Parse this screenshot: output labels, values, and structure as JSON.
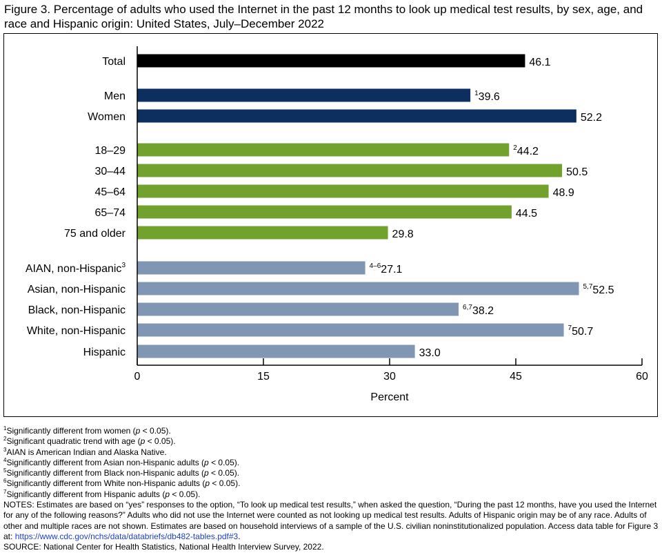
{
  "title": "Figure 3. Percentage of adults who used the Internet in the past 12 months to look up medical test results, by sex, age, and race and Hispanic origin: United States, July–December 2022",
  "chart_data": {
    "type": "bar",
    "orientation": "horizontal",
    "xlabel": "Percent",
    "xlim": [
      0,
      60
    ],
    "xticks": [
      "0",
      "15",
      "30",
      "45",
      "60"
    ],
    "grid": false,
    "groups": [
      {
        "color": "#000000",
        "bars": [
          {
            "label": "Total",
            "value": 46.1,
            "value_label": "46.1",
            "sup": "",
            "label_sup": ""
          }
        ]
      },
      {
        "color": "#0c2f60",
        "bars": [
          {
            "label": "Men",
            "value": 39.6,
            "value_label": "39.6",
            "sup": "1",
            "label_sup": ""
          },
          {
            "label": "Women",
            "value": 52.2,
            "value_label": "52.2",
            "sup": "",
            "label_sup": ""
          }
        ]
      },
      {
        "color": "#73a12d",
        "bars": [
          {
            "label": "18–29",
            "value": 44.2,
            "value_label": "44.2",
            "sup": "2",
            "label_sup": ""
          },
          {
            "label": "30–44",
            "value": 50.5,
            "value_label": "50.5",
            "sup": "",
            "label_sup": ""
          },
          {
            "label": "45–64",
            "value": 48.9,
            "value_label": "48.9",
            "sup": "",
            "label_sup": ""
          },
          {
            "label": "65–74",
            "value": 44.5,
            "value_label": "44.5",
            "sup": "",
            "label_sup": ""
          },
          {
            "label": "75 and older",
            "value": 29.8,
            "value_label": "29.8",
            "sup": "",
            "label_sup": ""
          }
        ]
      },
      {
        "color": "#8096b3",
        "bars": [
          {
            "label": "AIAN, non-Hispanic",
            "value": 27.1,
            "value_label": "27.1",
            "sup": "4–6",
            "label_sup": "3"
          },
          {
            "label": "Asian, non-Hispanic",
            "value": 52.5,
            "value_label": "52.5",
            "sup": "5,7",
            "label_sup": ""
          },
          {
            "label": "Black, non-Hispanic",
            "value": 38.2,
            "value_label": "38.2",
            "sup": "6,7",
            "label_sup": ""
          },
          {
            "label": "White, non-Hispanic",
            "value": 50.7,
            "value_label": "50.7",
            "sup": "7",
            "label_sup": ""
          },
          {
            "label": "Hispanic",
            "value": 33.0,
            "value_label": "33.0",
            "sup": "",
            "label_sup": ""
          }
        ]
      }
    ]
  },
  "footnotes": [
    {
      "sup": "1",
      "text": "Significantly different from women (",
      "p": "p",
      "tail": " < 0.05)."
    },
    {
      "sup": "2",
      "text": "Significant quadratic trend with age (",
      "p": "p",
      "tail": " < 0.05)."
    },
    {
      "sup": "3",
      "text": "AIAN is American Indian and Alaska Native.",
      "p": "",
      "tail": ""
    },
    {
      "sup": "4",
      "text": "Significantly different from Asian non-Hispanic adults (",
      "p": "p",
      "tail": " < 0.05)."
    },
    {
      "sup": "5",
      "text": "Significantly different from Black non-Hispanic adults (",
      "p": "p",
      "tail": " < 0.05)."
    },
    {
      "sup": "6",
      "text": "Significantly different from White non-Hispanic adults (",
      "p": "p",
      "tail": " < 0.05)."
    },
    {
      "sup": "7",
      "text": "Significantly different from Hispanic adults (",
      "p": "p",
      "tail": " < 0.05)."
    }
  ],
  "notes_text": "NOTES: Estimates are based on “yes” responses to the option, “To look up medical test results,” when asked the question, “During the past 12 months, have you used the Internet for any of the following reasons?” Adults who did not use the Internet were counted as not looking up medical test results. Adults of Hispanic origin may be of any race. Adults of other and multiple races are not shown. Estimates are based on household interviews of a sample of the U.S. civilian noninstitutionalized population. Access data table for Figure 3 at: ",
  "notes_url": "https://www.cdc.gov/nchs/data/databriefs/db482-tables.pdf#3",
  "notes_end": ".",
  "source_text": "SOURCE: National Center for Health Statistics, National Health Interview Survey, 2022."
}
